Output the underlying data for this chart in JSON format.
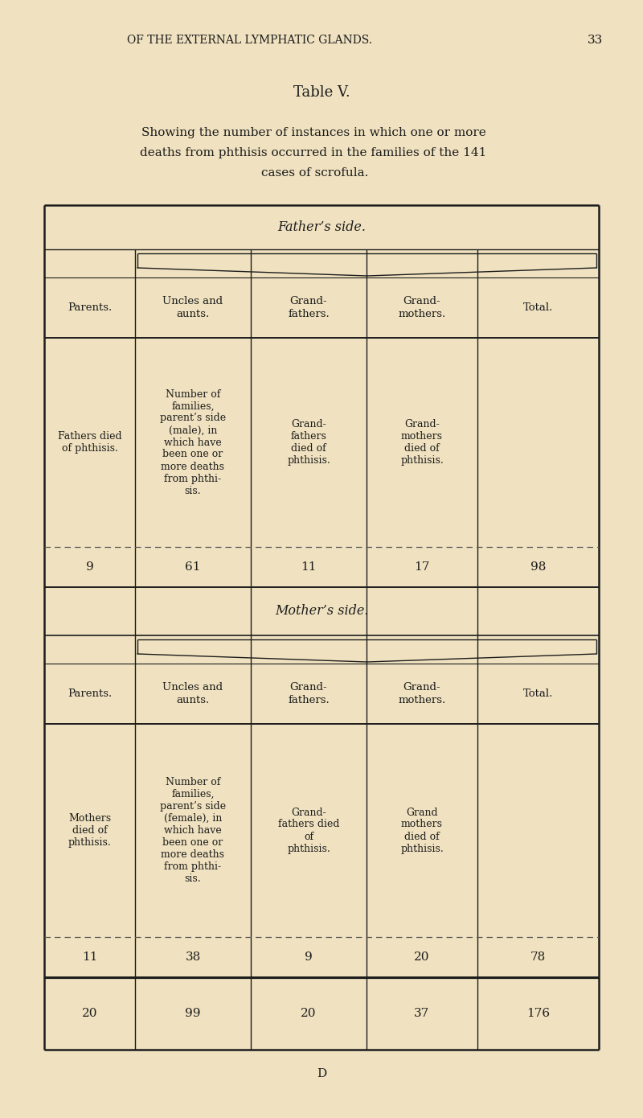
{
  "bg_color": "#f0e2c0",
  "page_header": "OF THE EXTERNAL LYMPHATIC GLANDS.",
  "page_number": "33",
  "table_title": "Table V.",
  "desc1": "Showing the number of instances in which one or more",
  "desc2": "deaths from phthisis occurred in the families of the 141",
  "desc3": "cases of scrofula.",
  "footer_letter": "D",
  "father_side_label": "Father’s side.",
  "mother_side_label": "Mother’s side.",
  "col_headers": [
    "Parents.",
    "Uncles and\naunts.",
    "Grand-\nfathers.",
    "Grand-\nmothers.",
    "Total."
  ],
  "father_desc_col0": "Fathers died\nof phthisis.",
  "father_desc_col1": "Number of\nfamilies,\nparent’s side\n(male), in\nwhich have\nbeen one or\nmore deaths\nfrom phthi-\nsis.",
  "father_desc_col2": "Grand-\nfathers\ndied of\nphthisis.",
  "father_desc_col3": "Grand-\nmothers\ndied of\nphthisis.",
  "father_data": [
    "9",
    "61",
    "11",
    "17",
    "98"
  ],
  "mother_desc_col0": "Mothers\ndied of\nphthisis.",
  "mother_desc_col1": "Number of\nfamilies,\nparent’s side\n(female), in\nwhich have\nbeen one or\nmore deaths\nfrom phthi-\nsis.",
  "mother_desc_col2": "Grand-\nfathers died\nof\nphthisis.",
  "mother_desc_col3": "Grand\nmothers\ndied of\nphthisis.",
  "mother_data": [
    "11",
    "38",
    "9",
    "20",
    "78"
  ],
  "total_data": [
    "20",
    "99",
    "20",
    "37",
    "176"
  ],
  "text_color": "#1c1c1c",
  "line_color": "#1c1c1c",
  "dashed_color": "#555555"
}
